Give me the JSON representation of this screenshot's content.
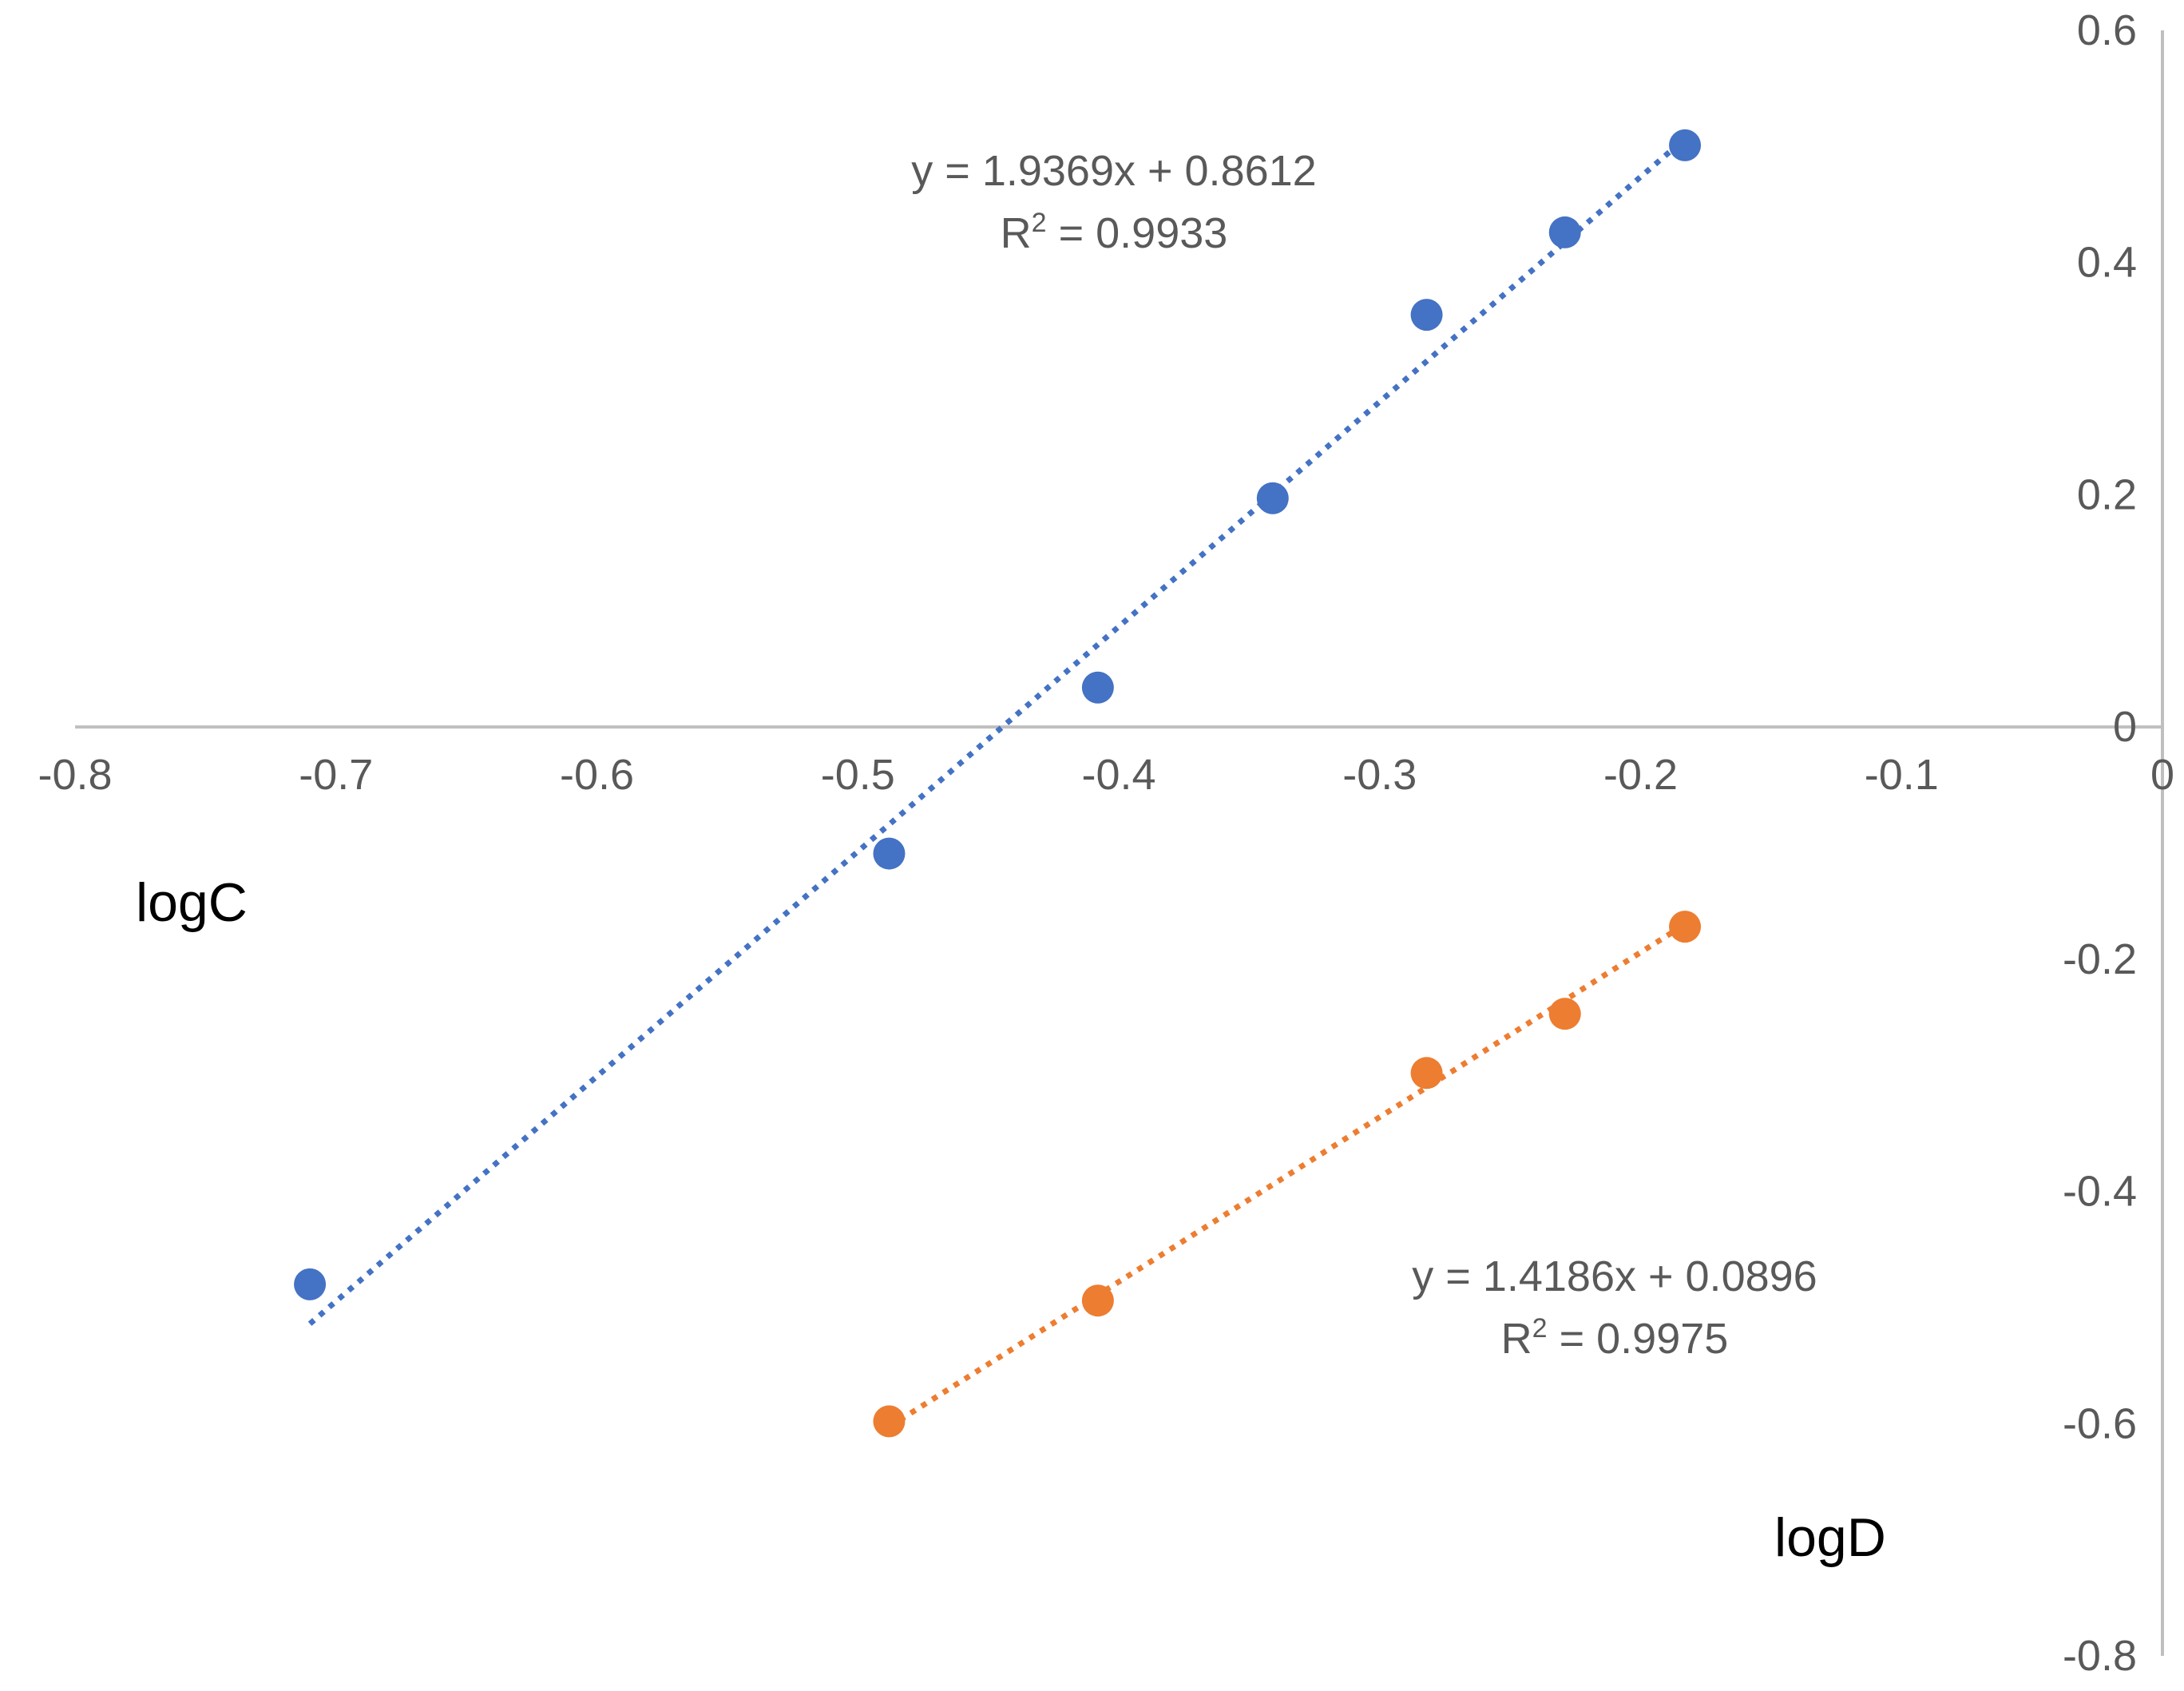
{
  "chart_data": {
    "type": "scatter",
    "xlabel": "logD",
    "ylabel": "logC",
    "xlim": [
      -0.8,
      0
    ],
    "ylim": [
      -0.8,
      0.6
    ],
    "x_ticks": [
      -0.8,
      -0.7,
      -0.6,
      -0.5,
      -0.4,
      -0.3,
      -0.2,
      -0.1,
      0
    ],
    "y_ticks": [
      0.6,
      0.4,
      0.2,
      0,
      -0.2,
      -0.4,
      -0.6,
      -0.8
    ],
    "x_tick_labels": [
      "-0.8",
      "-0.7",
      "-0.6",
      "-0.5",
      "-0.4",
      "-0.3",
      "-0.2",
      "-0.1",
      "0"
    ],
    "y_tick_labels": [
      "0.6",
      "0.4",
      "0.2",
      "0",
      "-0.2",
      "-0.4",
      "-0.6",
      "-0.8"
    ],
    "grid": false,
    "legend": "none",
    "series": [
      {
        "color": "#4472C4",
        "points": [
          {
            "x": -0.71,
            "y": -0.48
          },
          {
            "x": -0.488,
            "y": -0.109
          },
          {
            "x": -0.408,
            "y": 0.034
          },
          {
            "x": -0.341,
            "y": 0.197
          },
          {
            "x": -0.282,
            "y": 0.355
          },
          {
            "x": -0.229,
            "y": 0.426
          },
          {
            "x": -0.183,
            "y": 0.501
          }
        ],
        "trendline": {
          "style": "dotted",
          "slope": 1.9369,
          "intercept": 0.8612,
          "x_range": [
            -0.71,
            -0.183
          ],
          "equation": "y = 1.9369x + 0.8612",
          "r2_prefix": "R",
          "r2_exp": "2",
          "r2_value": " = 0.9933"
        }
      },
      {
        "color": "#ED7D31",
        "points": [
          {
            "x": -0.488,
            "y": -0.598
          },
          {
            "x": -0.408,
            "y": -0.494
          },
          {
            "x": -0.282,
            "y": -0.298
          },
          {
            "x": -0.229,
            "y": -0.247
          },
          {
            "x": -0.183,
            "y": -0.172
          }
        ],
        "trendline": {
          "style": "dotted",
          "slope": 1.4186,
          "intercept": 0.0896,
          "x_range": [
            -0.488,
            -0.183
          ],
          "equation": "y = 1.4186x + 0.0896",
          "r2_prefix": "R",
          "r2_exp": "2",
          "r2_value": " = 0.9975"
        }
      }
    ]
  }
}
